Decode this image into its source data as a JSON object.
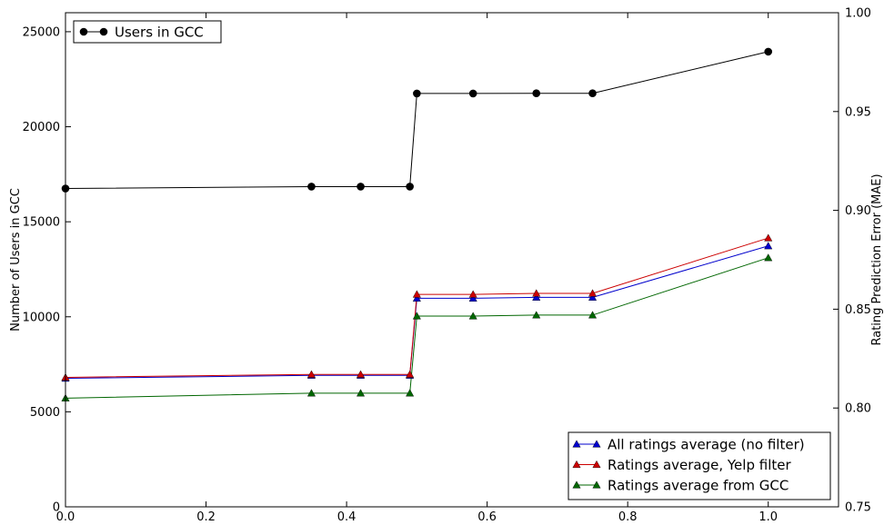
{
  "chart_data": {
    "type": "line",
    "xlim": [
      0.0,
      1.1
    ],
    "x_ticks": [
      "0.0",
      "0.2",
      "0.4",
      "0.6",
      "0.8",
      "1.0"
    ],
    "x_tick_values": [
      0.0,
      0.2,
      0.4,
      0.6,
      0.8,
      1.0
    ],
    "left_axis": {
      "label": "Number of Users in GCC",
      "ylim": [
        0,
        26000
      ],
      "ticks": [
        "0",
        "5000",
        "10000",
        "15000",
        "20000",
        "25000"
      ],
      "tick_values": [
        0,
        5000,
        10000,
        15000,
        20000,
        25000
      ]
    },
    "right_axis": {
      "label": "Rating Prediction Error (MAE)",
      "ylim": [
        0.75,
        1.0
      ],
      "ticks": [
        "0.75",
        "0.80",
        "0.85",
        "0.90",
        "0.95",
        "1.00"
      ],
      "tick_values": [
        0.75,
        0.8,
        0.85,
        0.9,
        0.95,
        1.0
      ]
    },
    "grid": false,
    "x": [
      0.0,
      0.35,
      0.42,
      0.49,
      0.5,
      0.58,
      0.67,
      0.75,
      1.0
    ],
    "series": [
      {
        "name": "Users in GCC",
        "axis": "left",
        "color": "#000000",
        "marker": "circle",
        "values": [
          16750,
          16850,
          16850,
          16850,
          21750,
          21750,
          21760,
          21760,
          23950
        ]
      },
      {
        "name": "All ratings average (no filter)",
        "axis": "right",
        "color": "#0000cc",
        "marker": "triangle",
        "values": [
          0.815,
          0.8165,
          0.8165,
          0.8165,
          0.8555,
          0.8555,
          0.856,
          0.856,
          0.882
        ]
      },
      {
        "name": "Ratings average, Yelp filter",
        "axis": "right",
        "color": "#cc0000",
        "marker": "triangle",
        "values": [
          0.8155,
          0.817,
          0.817,
          0.817,
          0.8575,
          0.8575,
          0.858,
          0.858,
          0.886
        ]
      },
      {
        "name": "Ratings average from GCC",
        "axis": "right",
        "color": "#006600",
        "marker": "triangle",
        "values": [
          0.805,
          0.8075,
          0.8075,
          0.8075,
          0.8465,
          0.8465,
          0.847,
          0.847,
          0.876
        ]
      }
    ],
    "legends": [
      {
        "placement": "top-left",
        "entries": [
          "Users in GCC"
        ]
      },
      {
        "placement": "bottom-right",
        "entries": [
          "All ratings average (no filter)",
          "Ratings average, Yelp filter",
          "Ratings average from GCC"
        ]
      }
    ]
  }
}
